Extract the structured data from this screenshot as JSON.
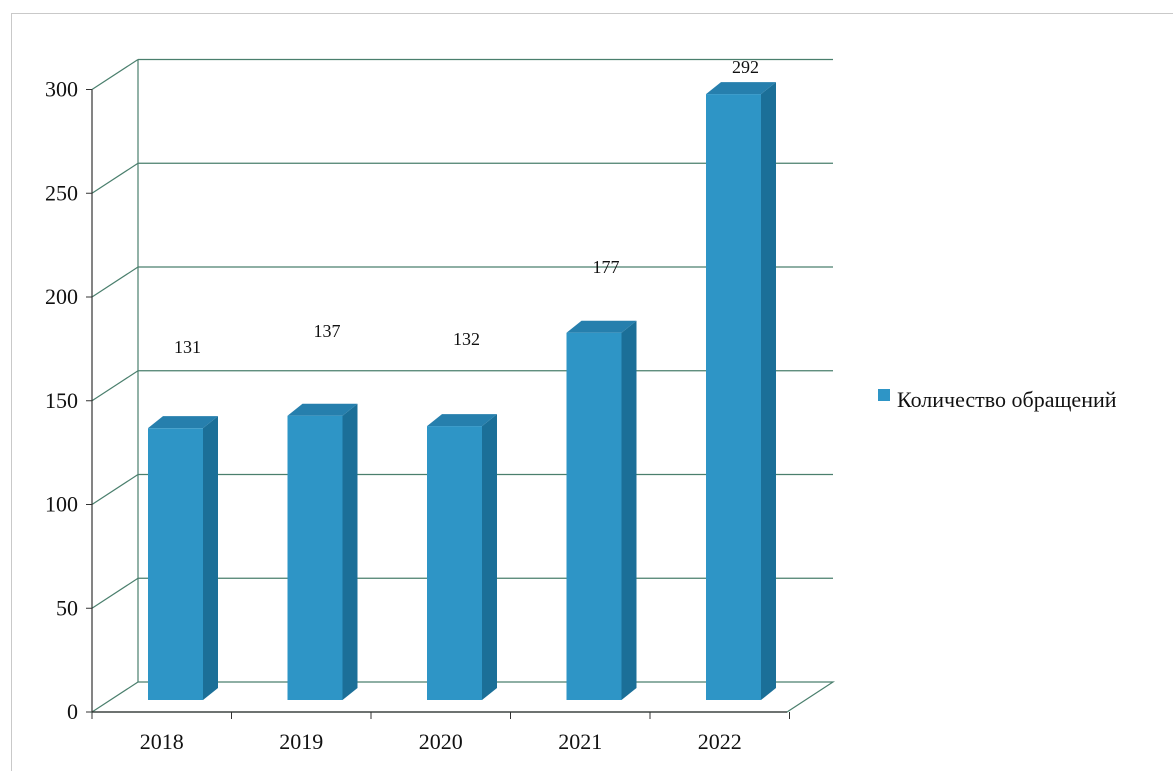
{
  "chart_data": {
    "type": "bar",
    "categories": [
      "2018",
      "2019",
      "2020",
      "2021",
      "2022"
    ],
    "series": [
      {
        "name": "Количество обращений",
        "values": [
          131,
          137,
          132,
          177,
          292
        ]
      }
    ],
    "ylim": [
      0,
      300
    ],
    "yticks": [
      "0",
      "50",
      "100",
      "150",
      "200",
      "250",
      "300"
    ],
    "value_labels": [
      "131",
      "137",
      "132",
      "177",
      "292"
    ],
    "grid": true,
    "legend": "right",
    "style": "3d-column",
    "colors": {
      "bar_front": "#2e95c6",
      "bar_side": "#1b6f98",
      "bar_top": "#267fad",
      "grid": "#4a7f6d"
    }
  }
}
